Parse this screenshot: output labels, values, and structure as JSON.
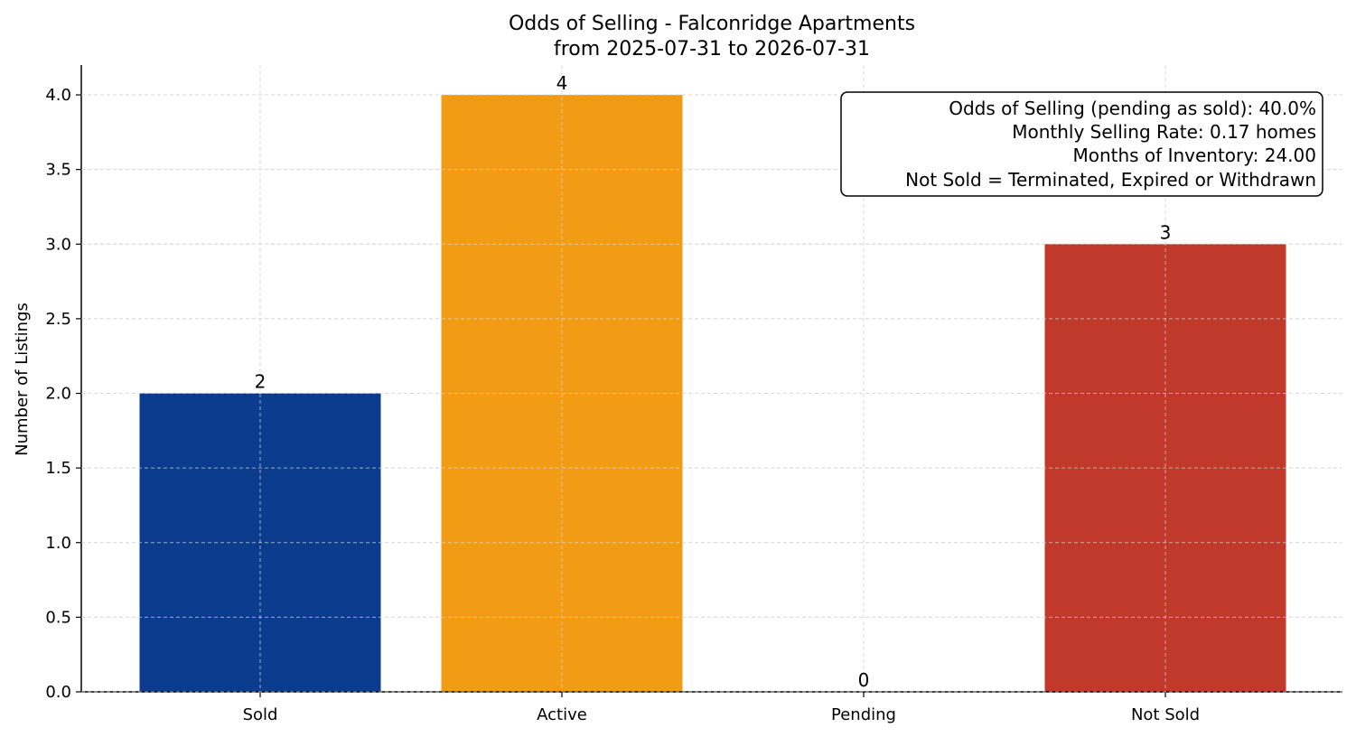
{
  "chart_data": {
    "type": "bar",
    "title": "Odds of Selling - Falconridge Apartments",
    "subtitle": "from 2025-07-31 to 2026-07-31",
    "categories": [
      "Sold",
      "Active",
      "Pending",
      "Not Sold"
    ],
    "values": [
      2,
      4,
      0,
      3
    ],
    "colors": [
      "#0b3b8c",
      "#f29c16",
      "#f29c16",
      "#c0392b"
    ],
    "xlabel": "",
    "ylabel": "Number of Listings",
    "ylim": [
      0,
      4.2
    ],
    "yticks": [
      "0.0",
      "0.5",
      "1.0",
      "1.5",
      "2.0",
      "2.5",
      "3.0",
      "3.5",
      "4.0"
    ],
    "grid": true,
    "annotation_lines": [
      "Odds of Selling (pending as sold): 40.0%",
      "Monthly Selling Rate: 0.17 homes",
      "Months of Inventory: 24.00",
      "Not Sold = Terminated, Expired or Withdrawn"
    ],
    "annotation_placement": "top-right"
  }
}
